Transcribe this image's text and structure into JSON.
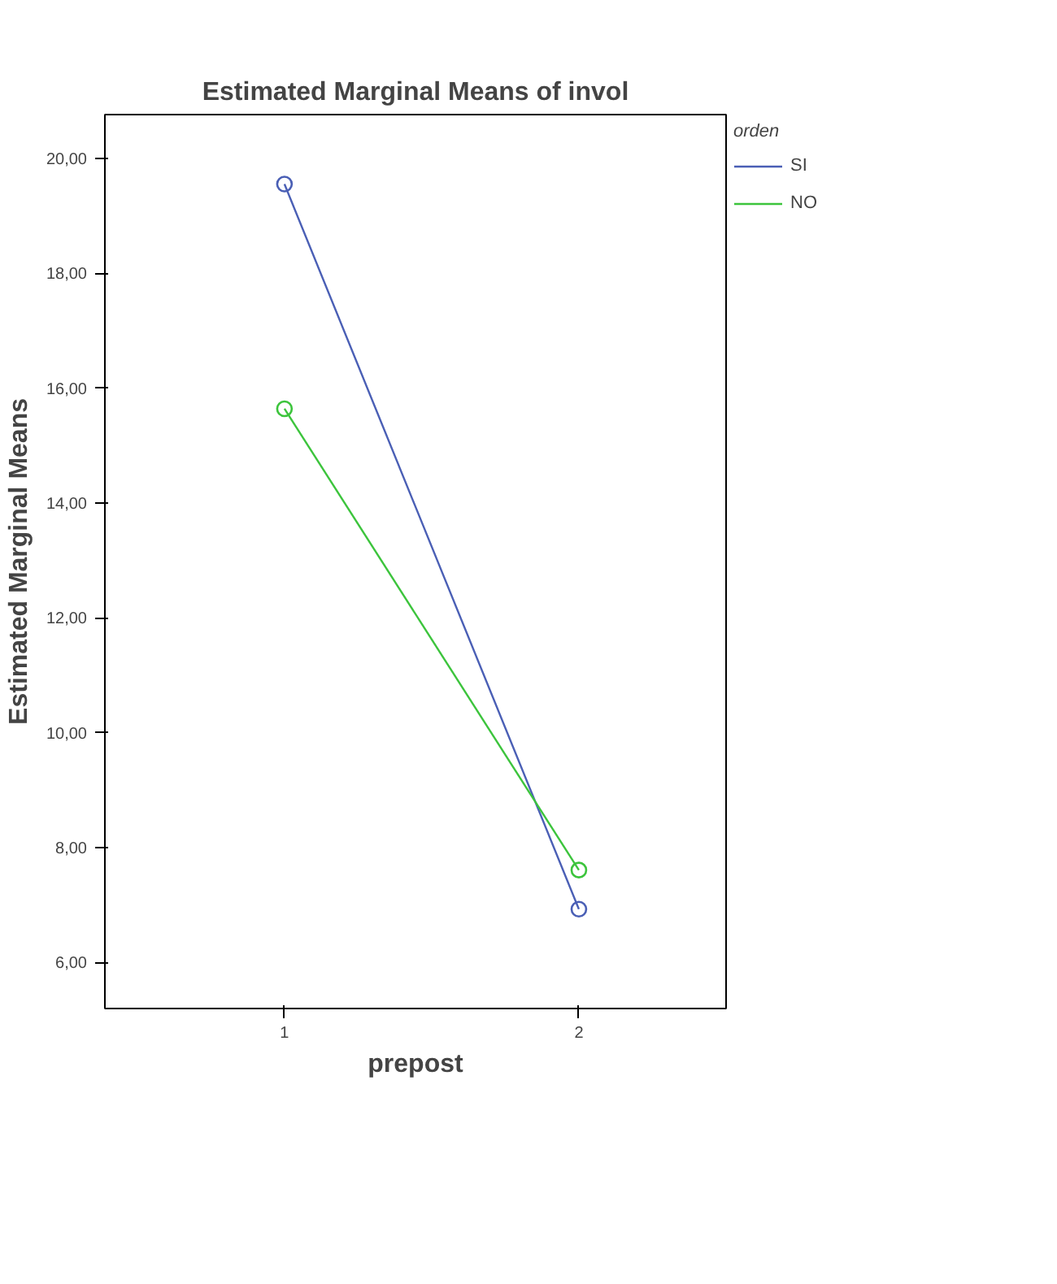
{
  "chart_data": {
    "type": "line",
    "title": "Estimated Marginal Means of invol",
    "xlabel": "prepost",
    "ylabel": "Estimated Marginal Means",
    "legend_title": "orden",
    "x": [
      1,
      2
    ],
    "series": [
      {
        "name": "SI",
        "color": "#4a5fb5",
        "values": [
          19.55,
          6.93
        ]
      },
      {
        "name": "NO",
        "color": "#3cc43c",
        "values": [
          15.64,
          7.61
        ]
      }
    ],
    "xlim": [
      0.39,
      2.5
    ],
    "ylim": [
      5.2,
      20.76
    ],
    "xticks": [
      1,
      2
    ],
    "yticks": [
      {
        "value": 6,
        "label": "6,00"
      },
      {
        "value": 8,
        "label": "8,00"
      },
      {
        "value": 10,
        "label": "10,00"
      },
      {
        "value": 12,
        "label": "12,00"
      },
      {
        "value": 14,
        "label": "14,00"
      },
      {
        "value": 16,
        "label": "16,00"
      },
      {
        "value": 18,
        "label": "18,00"
      },
      {
        "value": 20,
        "label": "20,00"
      }
    ],
    "marker": "circle",
    "line_style": "solid",
    "legend": "top right",
    "grid": false
  }
}
